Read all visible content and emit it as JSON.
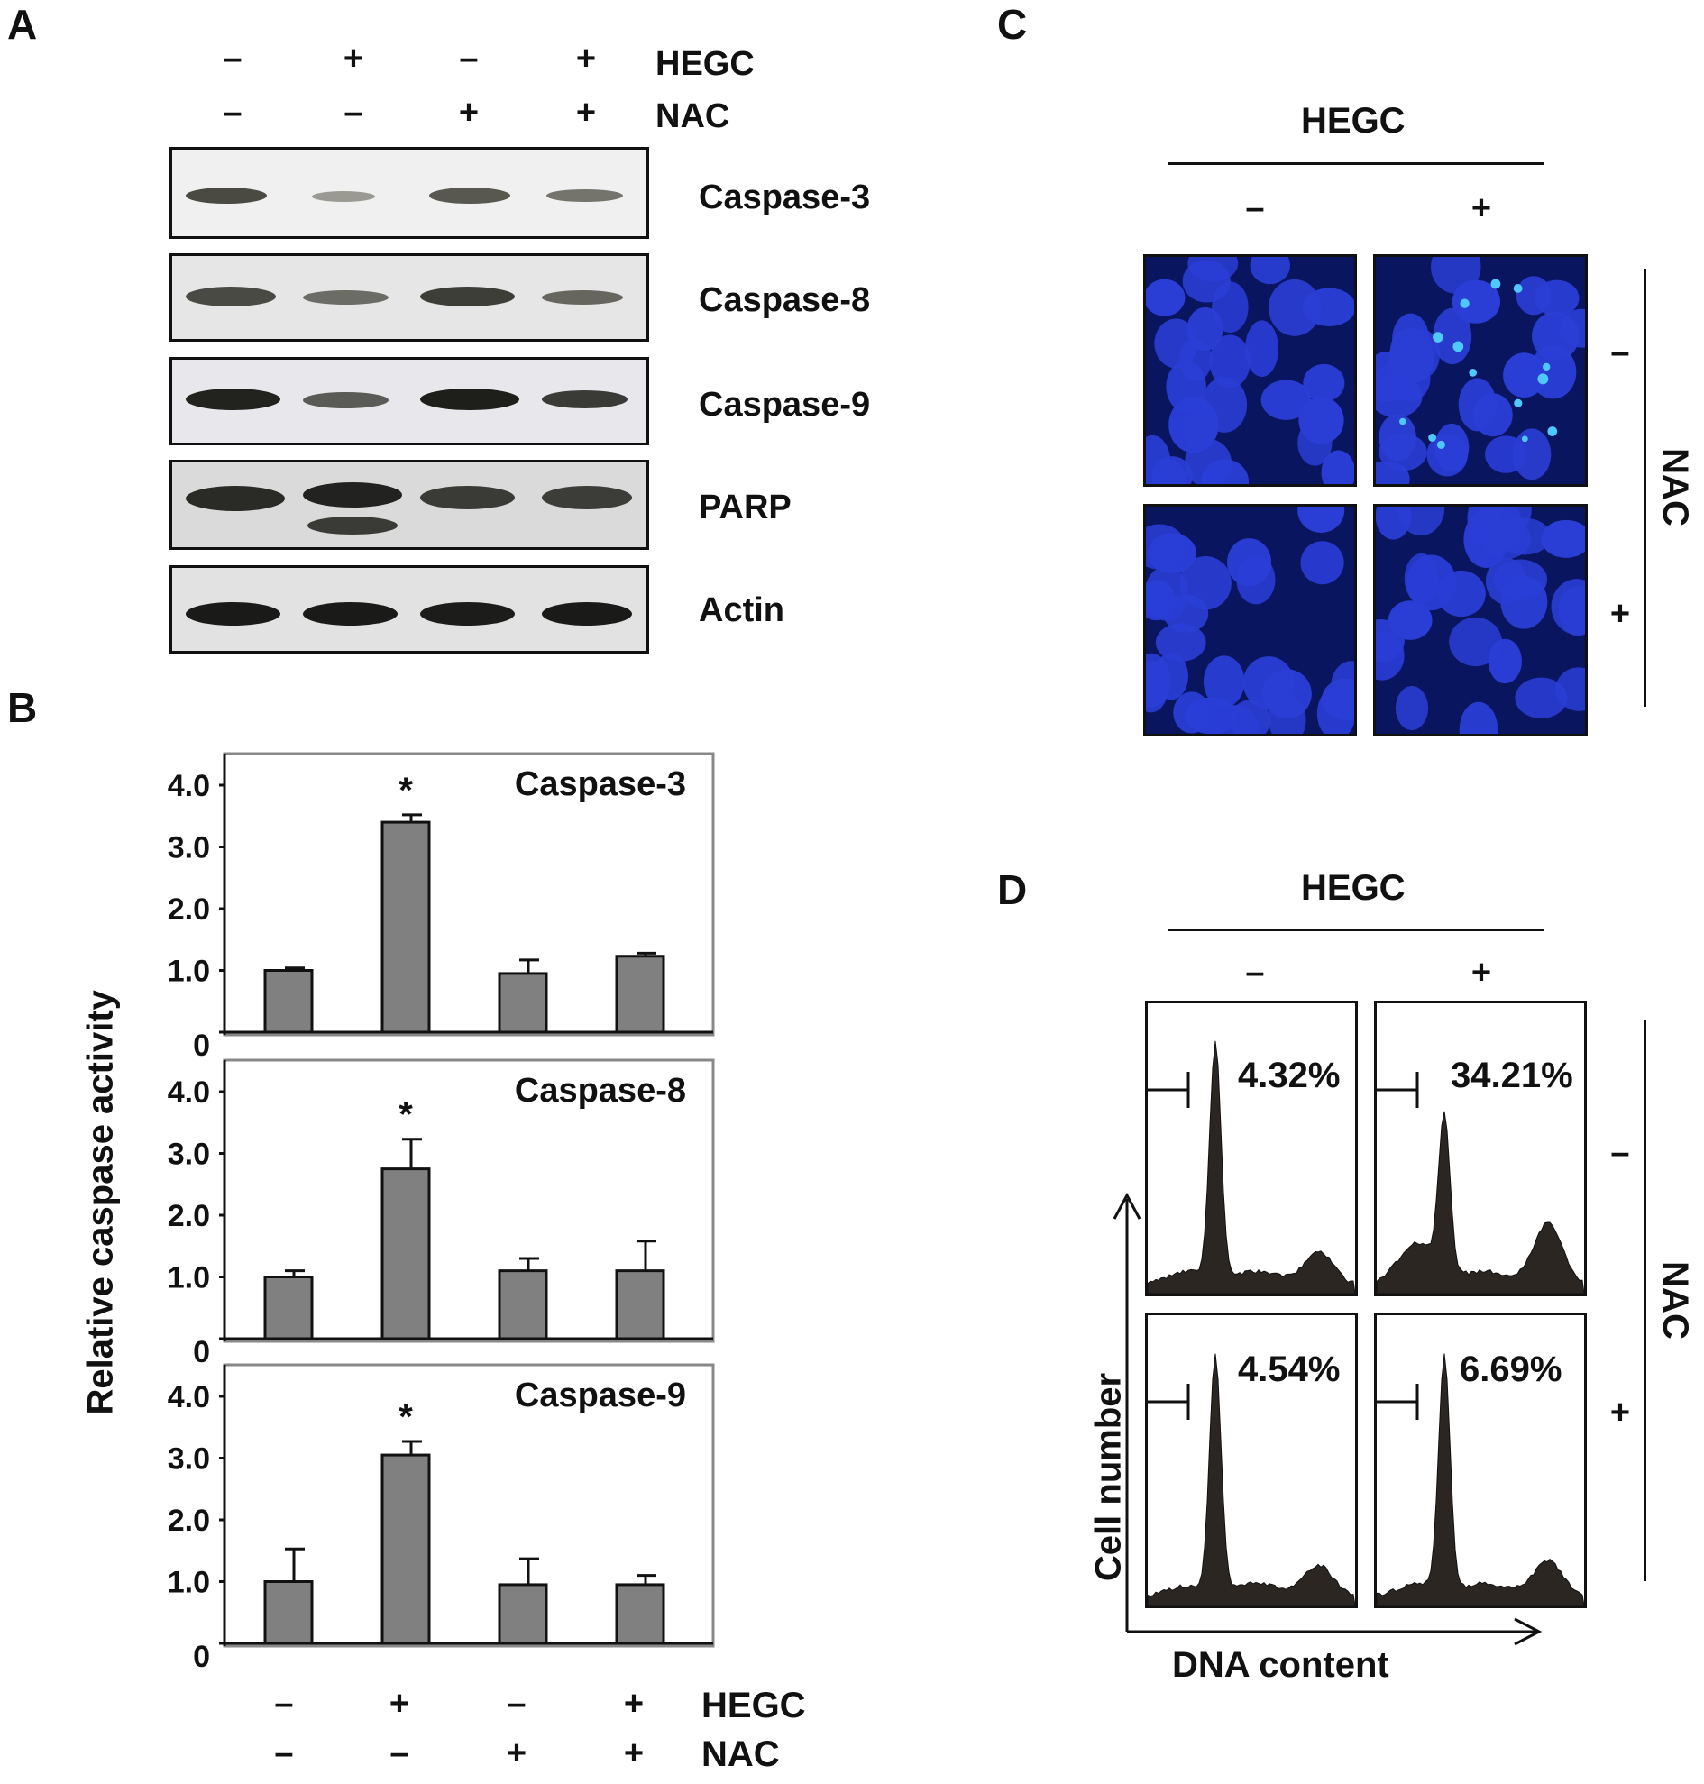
{
  "panel_letters": {
    "a": "A",
    "b": "B",
    "c": "C",
    "d": "D"
  },
  "signs": {
    "minus": "–",
    "plus": "+"
  },
  "treatments": {
    "hegc": "HEGC",
    "nac": "NAC"
  },
  "panel_a": {
    "hegc_row": [
      "–",
      "+",
      "–",
      "+"
    ],
    "nac_row": [
      "–",
      "–",
      "+",
      "+"
    ],
    "blots": [
      {
        "label": "Caspase-3"
      },
      {
        "label": "Caspase-8"
      },
      {
        "label": "Caspase-9"
      },
      {
        "label": "PARP"
      },
      {
        "label": "Actin"
      }
    ]
  },
  "panel_b": {
    "ylabel": "Relative caspase activity",
    "hegc_row": [
      "–",
      "+",
      "–",
      "+"
    ],
    "nac_row": [
      "–",
      "–",
      "+",
      "+"
    ],
    "significance_marker": "*",
    "yticks": [
      "0",
      "1.0",
      "2.0",
      "3.0",
      "4.0"
    ]
  },
  "chart_data": [
    {
      "type": "bar",
      "title": "Caspase-3",
      "categories": [
        "HEGC– NAC–",
        "HEGC+ NAC–",
        "HEGC– NAC+",
        "HEGC+ NAC+"
      ],
      "values": [
        1.0,
        3.4,
        0.95,
        1.23
      ],
      "errors": [
        0.04,
        0.12,
        0.22,
        0.05
      ],
      "significant": [
        false,
        true,
        false,
        false
      ],
      "ylim": [
        0,
        4.0
      ],
      "yticks": [
        0,
        1.0,
        2.0,
        3.0,
        4.0
      ],
      "ylabel": "Relative caspase activity"
    },
    {
      "type": "bar",
      "title": "Caspase-8",
      "categories": [
        "HEGC– NAC–",
        "HEGC+ NAC–",
        "HEGC– NAC+",
        "HEGC+ NAC+"
      ],
      "values": [
        1.0,
        2.75,
        1.1,
        1.1
      ],
      "errors": [
        0.1,
        0.48,
        0.2,
        0.48
      ],
      "significant": [
        false,
        true,
        false,
        false
      ],
      "ylim": [
        0,
        4.0
      ],
      "yticks": [
        0,
        1.0,
        2.0,
        3.0,
        4.0
      ],
      "ylabel": "Relative caspase activity"
    },
    {
      "type": "bar",
      "title": "Caspase-9",
      "categories": [
        "HEGC– NAC–",
        "HEGC+ NAC–",
        "HEGC– NAC+",
        "HEGC+ NAC+"
      ],
      "values": [
        1.0,
        3.05,
        0.95,
        0.95
      ],
      "errors": [
        0.53,
        0.22,
        0.42,
        0.15
      ],
      "significant": [
        false,
        true,
        false,
        false
      ],
      "ylim": [
        0,
        4.0
      ],
      "yticks": [
        0,
        1.0,
        2.0,
        3.0,
        4.0
      ],
      "ylabel": "Relative caspase activity"
    }
  ],
  "panel_c": {
    "col_header": "HEGC",
    "cols": [
      "–",
      "+"
    ],
    "row_header": "NAC",
    "rows": [
      "–",
      "+"
    ],
    "colors": {
      "background": "#0a1560",
      "nucleus": "#2a3ed6",
      "bright": "#4fc8ff"
    }
  },
  "panel_d": {
    "col_header": "HEGC",
    "cols": [
      "–",
      "+"
    ],
    "row_header": "NAC",
    "rows": [
      "–",
      "+"
    ],
    "ylabel": "Cell number",
    "xlabel": "DNA content",
    "percentages": [
      "4.32%",
      "34.21%",
      "4.54%",
      "6.69%"
    ]
  }
}
